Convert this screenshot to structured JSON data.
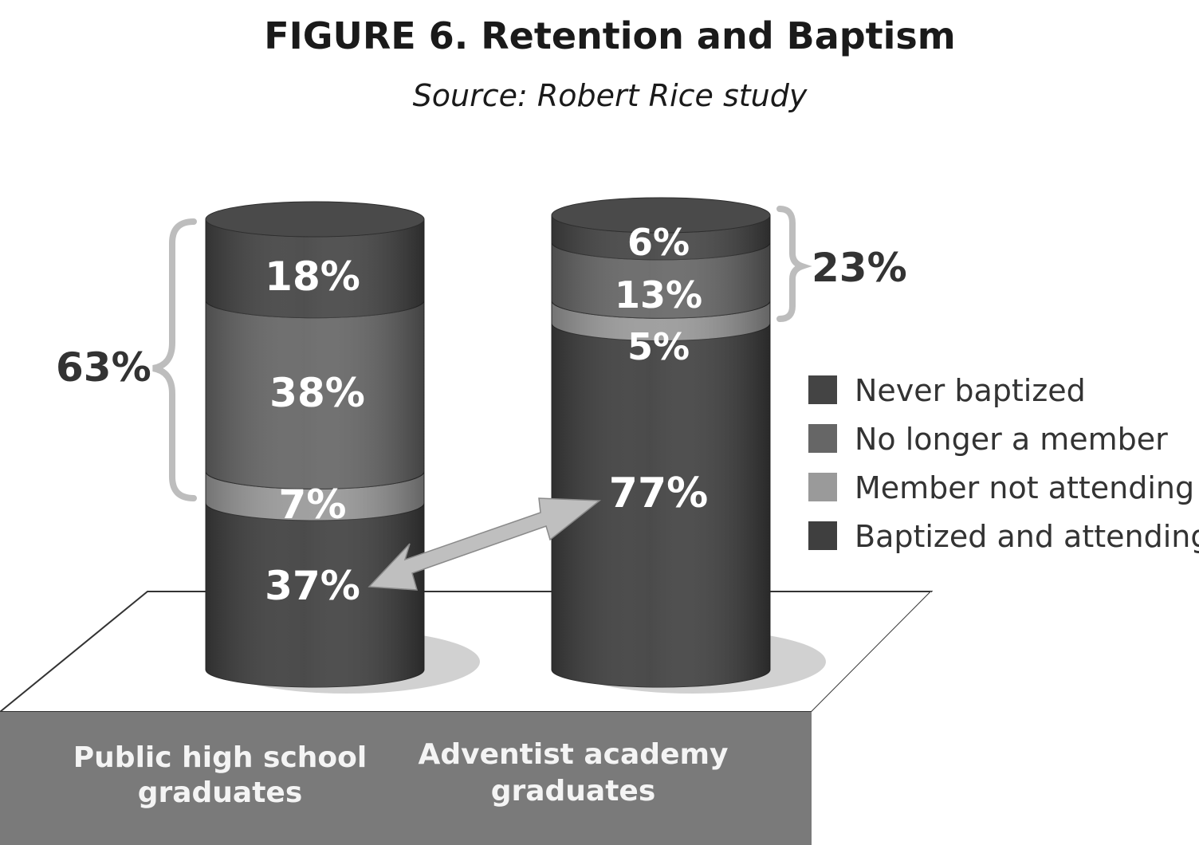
{
  "title": "FIGURE 6. Retention and Baptism",
  "subtitle": "Source: Robert Rice study",
  "colors": {
    "never_baptized": "#444444",
    "no_longer_member": "#666666",
    "member_not_attending": "#9a9a9a",
    "baptized_attending": "#3f3f3f",
    "base": "#7a7a7a",
    "brace": "#bdbdbd",
    "arrow": "#bfbfbf"
  },
  "chart_data": {
    "type": "bar",
    "stacked": true,
    "categories": [
      "Public high school graduates",
      "Adventist academy graduates"
    ],
    "category_lines": [
      [
        "Public high school",
        "graduates"
      ],
      [
        "Adventist academy",
        "graduates"
      ]
    ],
    "series": [
      {
        "name": "Baptized and attending",
        "values": [
          37,
          77
        ],
        "labels": [
          "37%",
          "77%"
        ]
      },
      {
        "name": "Member not attending",
        "values": [
          7,
          5
        ],
        "labels": [
          "7%",
          "5%"
        ]
      },
      {
        "name": "No longer a member",
        "values": [
          38,
          13
        ],
        "labels": [
          "38%",
          "13%"
        ]
      },
      {
        "name": "Never baptized",
        "values": [
          18,
          6
        ],
        "labels": [
          "18%",
          "6%"
        ]
      }
    ],
    "brace_totals": [
      "63%",
      "23%"
    ],
    "legend": [
      "Never baptized",
      "No longer a member",
      "Member not attending",
      "Baptized and attending"
    ],
    "legend_position": "right",
    "annotation": "double-headed arrow comparing 37% and 77%"
  }
}
